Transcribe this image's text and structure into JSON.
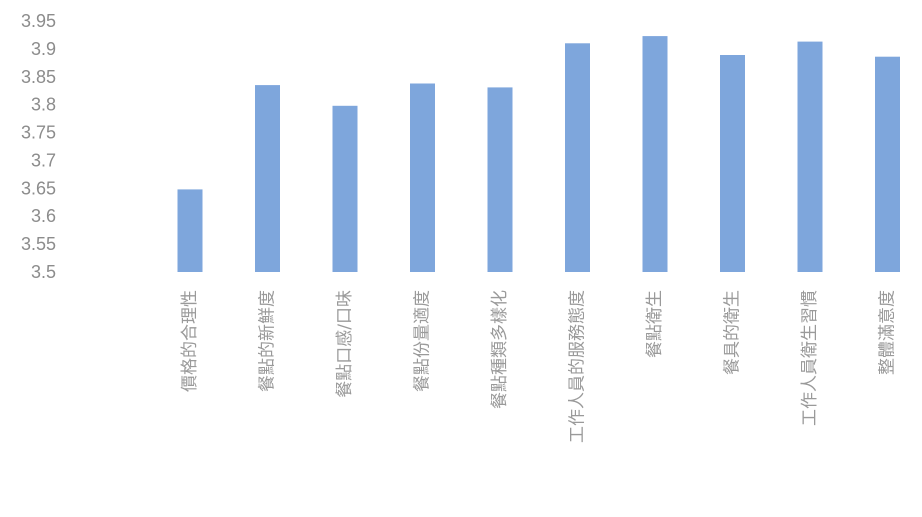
{
  "chart_data": {
    "type": "bar",
    "categories": [
      "價格的合理性",
      "餐點的新鮮度",
      "餐點口感/口味",
      "餐點份量適度",
      "餐點種類多樣化",
      "工作人員的服務態度",
      "餐點衛生",
      "餐具的衛生",
      "工作人員衛生習慣",
      "整體滿意度"
    ],
    "values": [
      3.648,
      3.835,
      3.798,
      3.838,
      3.831,
      3.91,
      3.923,
      3.889,
      3.913,
      3.886
    ],
    "ylim": [
      3.5,
      3.95
    ],
    "yticks": [
      "3.95",
      "3.9",
      "3.85",
      "3.8",
      "3.75",
      "3.7",
      "3.65",
      "3.6",
      "3.55",
      "3.5"
    ],
    "title": "",
    "xlabel": "",
    "ylabel": "",
    "grid": false,
    "legend": "none",
    "bar_color": "#7ea6dc"
  }
}
